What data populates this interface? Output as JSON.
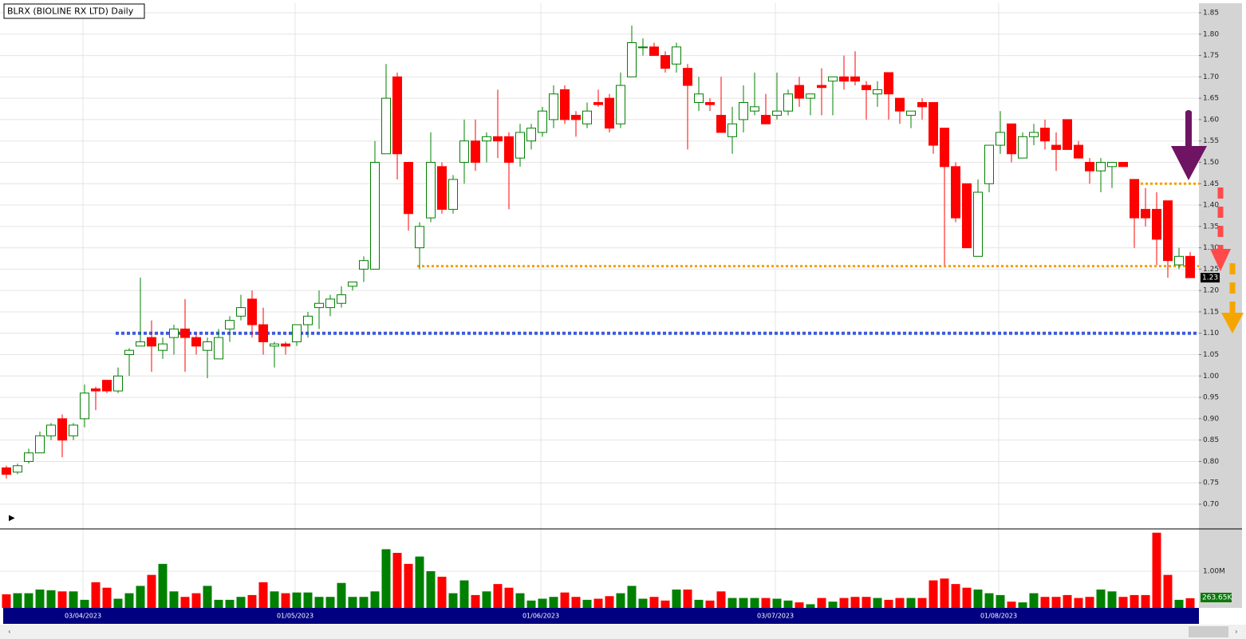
{
  "chart_data": {
    "type": "candlestick",
    "title": "BLRX (BIOLINE RX LTD) Daily",
    "categories": [
      null,
      null,
      null,
      null,
      null,
      null,
      null,
      "03/04/2023",
      null,
      null,
      null,
      null,
      null,
      null,
      null,
      null,
      null,
      null,
      null,
      null,
      null,
      null,
      null,
      null,
      null,
      null,
      "01/05/2023",
      null,
      null,
      null,
      null,
      null,
      null,
      null,
      null,
      null,
      null,
      null,
      null,
      null,
      null,
      null,
      null,
      null,
      null,
      null,
      null,
      null,
      "01/06/2023",
      null,
      null,
      null,
      null,
      null,
      null,
      null,
      null,
      null,
      null,
      null,
      null,
      null,
      null,
      null,
      null,
      null,
      null,
      null,
      null,
      "03/07/2023",
      null,
      null,
      null,
      null,
      null,
      null,
      null,
      null,
      null,
      null,
      null,
      null,
      null,
      null,
      null,
      null,
      null,
      null,
      null,
      "01/08/2023",
      null,
      null,
      null,
      null,
      null,
      null,
      null,
      null,
      null,
      null,
      null,
      null,
      null,
      null,
      null,
      null,
      null
    ],
    "open": [
      0.785,
      0.775,
      0.8,
      0.82,
      0.86,
      0.9,
      0.86,
      0.9,
      0.97,
      0.99,
      0.965,
      1.05,
      1.07,
      1.09,
      1.06,
      1.09,
      1.11,
      1.09,
      1.06,
      1.04,
      1.11,
      1.14,
      1.18,
      1.12,
      1.07,
      1.075,
      1.08,
      1.12,
      1.16,
      1.16,
      1.17,
      1.21,
      1.25,
      1.25,
      1.52,
      1.7,
      1.5,
      1.3,
      1.37,
      1.49,
      1.39,
      1.5,
      1.55,
      1.55,
      1.56,
      1.56,
      1.51,
      1.55,
      1.57,
      1.6,
      1.67,
      1.61,
      1.59,
      1.64,
      1.65,
      1.59,
      1.7,
      1.77,
      1.77,
      1.75,
      1.73,
      1.72,
      1.64,
      1.64,
      1.61,
      1.56,
      1.6,
      1.62,
      1.61,
      1.61,
      1.62,
      1.68,
      1.65,
      1.68,
      1.69,
      1.7,
      1.7,
      1.68,
      1.66,
      1.71,
      1.65,
      1.61,
      1.64,
      1.64,
      1.58,
      1.49,
      1.45,
      1.28,
      1.45,
      1.54,
      1.59,
      1.51,
      1.56,
      1.58,
      1.54,
      1.6,
      1.54,
      1.5,
      1.48,
      1.49,
      1.5,
      1.46,
      1.39,
      1.39,
      1.41,
      1.26,
      1.28
    ],
    "high": [
      0.79,
      0.795,
      0.83,
      0.87,
      0.89,
      0.91,
      0.89,
      0.98,
      0.975,
      0.99,
      1.02,
      1.065,
      1.23,
      1.13,
      1.09,
      1.12,
      1.18,
      1.1,
      1.09,
      1.11,
      1.14,
      1.19,
      1.2,
      1.16,
      1.08,
      1.08,
      1.12,
      1.15,
      1.2,
      1.19,
      1.21,
      1.22,
      1.28,
      1.55,
      1.73,
      1.71,
      1.5,
      1.36,
      1.57,
      1.5,
      1.47,
      1.6,
      1.6,
      1.57,
      1.67,
      1.57,
      1.59,
      1.59,
      1.63,
      1.68,
      1.68,
      1.62,
      1.64,
      1.67,
      1.66,
      1.71,
      1.82,
      1.79,
      1.78,
      1.76,
      1.78,
      1.73,
      1.7,
      1.65,
      1.7,
      1.63,
      1.68,
      1.71,
      1.66,
      1.71,
      1.67,
      1.7,
      1.66,
      1.72,
      1.7,
      1.75,
      1.76,
      1.69,
      1.69,
      1.71,
      1.65,
      1.62,
      1.65,
      1.64,
      1.58,
      1.5,
      1.45,
      1.46,
      1.54,
      1.62,
      1.59,
      1.57,
      1.59,
      1.6,
      1.57,
      1.6,
      1.55,
      1.51,
      1.51,
      1.5,
      1.5,
      1.46,
      1.44,
      1.43,
      1.41,
      1.3,
      1.29
    ],
    "low": [
      0.76,
      0.77,
      0.795,
      0.82,
      0.85,
      0.81,
      0.85,
      0.88,
      0.92,
      0.96,
      0.96,
      1.0,
      1.07,
      1.01,
      1.04,
      1.05,
      1.01,
      1.05,
      0.995,
      1.04,
      1.08,
      1.13,
      1.09,
      1.05,
      1.02,
      1.05,
      1.07,
      1.09,
      1.11,
      1.14,
      1.16,
      1.2,
      1.22,
      1.25,
      1.52,
      1.46,
      1.34,
      1.25,
      1.36,
      1.38,
      1.38,
      1.45,
      1.48,
      1.5,
      1.51,
      1.39,
      1.49,
      1.53,
      1.56,
      1.58,
      1.59,
      1.56,
      1.58,
      1.63,
      1.57,
      1.58,
      1.7,
      1.75,
      1.75,
      1.71,
      1.71,
      1.53,
      1.62,
      1.62,
      1.57,
      1.52,
      1.57,
      1.61,
      1.59,
      1.6,
      1.61,
      1.63,
      1.61,
      1.61,
      1.61,
      1.67,
      1.68,
      1.6,
      1.63,
      1.6,
      1.59,
      1.58,
      1.6,
      1.52,
      1.26,
      1.36,
      1.3,
      1.28,
      1.43,
      1.52,
      1.5,
      1.51,
      1.54,
      1.53,
      1.48,
      1.53,
      1.51,
      1.45,
      1.43,
      1.44,
      1.49,
      1.3,
      1.35,
      1.26,
      1.23,
      1.25,
      1.23
    ],
    "close": [
      0.77,
      0.79,
      0.82,
      0.86,
      0.885,
      0.85,
      0.885,
      0.96,
      0.965,
      0.965,
      1.0,
      1.06,
      1.08,
      1.07,
      1.075,
      1.11,
      1.09,
      1.07,
      1.08,
      1.09,
      1.13,
      1.16,
      1.12,
      1.08,
      1.075,
      1.07,
      1.12,
      1.14,
      1.17,
      1.18,
      1.19,
      1.22,
      1.27,
      1.5,
      1.65,
      1.52,
      1.38,
      1.35,
      1.5,
      1.39,
      1.46,
      1.55,
      1.5,
      1.56,
      1.55,
      1.5,
      1.57,
      1.58,
      1.62,
      1.66,
      1.6,
      1.6,
      1.62,
      1.635,
      1.58,
      1.68,
      1.78,
      1.77,
      1.75,
      1.72,
      1.77,
      1.68,
      1.66,
      1.635,
      1.57,
      1.59,
      1.64,
      1.63,
      1.59,
      1.62,
      1.66,
      1.65,
      1.66,
      1.675,
      1.7,
      1.69,
      1.69,
      1.67,
      1.67,
      1.66,
      1.62,
      1.62,
      1.63,
      1.54,
      1.49,
      1.37,
      1.3,
      1.43,
      1.54,
      1.57,
      1.52,
      1.56,
      1.57,
      1.55,
      1.53,
      1.53,
      1.51,
      1.48,
      1.5,
      1.5,
      1.49,
      1.37,
      1.37,
      1.32,
      1.27,
      1.28,
      1.23
    ],
    "volume": {
      "values": [
        370000,
        400000,
        400000,
        500000,
        480000,
        450000,
        450000,
        220000,
        700000,
        550000,
        250000,
        400000,
        600000,
        900000,
        1200000,
        450000,
        300000,
        400000,
        600000,
        220000,
        220000,
        300000,
        350000,
        700000,
        450000,
        400000,
        420000,
        420000,
        300000,
        300000,
        680000,
        300000,
        300000,
        450000,
        1600000,
        1500000,
        1200000,
        1400000,
        1000000,
        850000,
        400000,
        750000,
        350000,
        450000,
        650000,
        550000,
        400000,
        200000,
        250000,
        300000,
        420000,
        300000,
        220000,
        250000,
        320000,
        400000,
        600000,
        250000,
        300000,
        200000,
        500000,
        500000,
        220000,
        200000,
        450000,
        270000,
        270000,
        270000,
        270000,
        250000,
        200000,
        150000,
        100000,
        270000,
        170000,
        270000,
        300000,
        300000,
        270000,
        220000,
        270000,
        270000,
        270000,
        750000,
        800000,
        650000,
        550000,
        500000,
        400000,
        350000,
        170000,
        150000,
        400000,
        300000,
        300000,
        350000,
        270000,
        300000,
        500000,
        450000,
        300000,
        350000,
        350000,
        2050000,
        900000,
        220000,
        263650
      ],
      "value_labels": [
        null,
        null,
        null,
        null,
        null,
        null,
        null,
        null,
        null,
        null,
        null,
        null,
        null,
        null,
        null,
        null,
        null,
        null,
        null,
        null,
        null,
        null,
        null,
        null,
        null,
        null,
        null,
        null,
        null,
        null,
        null,
        null,
        null,
        null,
        null,
        null,
        null,
        null,
        null,
        null,
        null,
        null,
        null,
        null,
        null,
        null,
        null,
        null,
        null,
        null,
        null,
        null,
        null,
        null,
        null,
        null,
        null,
        null,
        null,
        null,
        null,
        null,
        null,
        null,
        null,
        null,
        null,
        null,
        null,
        null,
        null,
        null,
        null,
        null,
        null,
        null,
        null,
        null,
        null,
        null,
        null,
        null,
        null,
        null,
        null,
        null,
        null,
        null,
        null,
        null,
        null,
        null,
        null,
        null,
        null,
        null,
        null,
        null,
        null,
        null,
        null,
        null,
        null,
        null,
        null,
        null,
        "263.65K"
      ],
      "ylim": [
        0,
        2110000
      ],
      "yticks": [
        {
          "value": 1000000,
          "label": "1.00M"
        }
      ]
    },
    "ylim": [
      0.644,
      1.8724
    ],
    "yticks": [
      {
        "value": 0.7,
        "label": "0.70"
      },
      0.75,
      {
        "value": 0.8,
        "label": "0.80"
      },
      0.85,
      {
        "value": 0.9,
        "label": "0.90"
      },
      0.95,
      {
        "value": 1,
        "label": "1.00"
      },
      1.05,
      {
        "value": 1.1,
        "label": "1.10"
      },
      1.15,
      {
        "value": 1.2,
        "label": "1.20"
      },
      1.25,
      {
        "value": 1.3,
        "label": "1.30"
      },
      1.35,
      {
        "value": 1.4,
        "label": "1.40"
      },
      1.45,
      {
        "value": 1.5,
        "label": "1.50"
      },
      1.55,
      {
        "value": 1.6,
        "label": "1.60"
      },
      1.65,
      {
        "value": 1.7,
        "label": "1.70"
      },
      1.75,
      {
        "value": 1.8,
        "label": "1.80"
      },
      1.85
    ],
    "up_color": "#008000",
    "down_color": "#ff0000",
    "levels": [
      {
        "value": 1.1,
        "color": "#3a5be0"
      },
      {
        "value": 1.257,
        "color": "#f5a000"
      },
      {
        "value": 1.45,
        "color": "#f5a000"
      }
    ],
    "grid": true
  }
}
